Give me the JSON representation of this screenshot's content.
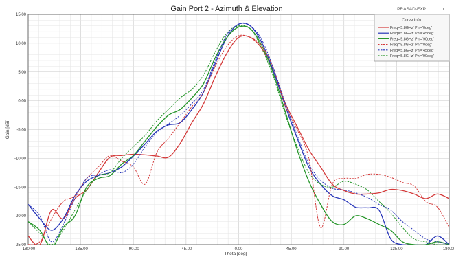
{
  "header": {
    "title": "Gain Port 2 - Azimuth & Elevation",
    "brand": "PRASAD-EXP",
    "close_glyph": "x"
  },
  "chart_data": {
    "type": "line",
    "title": "Gain Port 2 - Azimuth & Elevation",
    "xlabel": "Theta [deg]",
    "ylabel": "Gain [dBi]",
    "xlim": [
      -180,
      180
    ],
    "ylim": [
      -25,
      15
    ],
    "xticks": [
      -180,
      -135,
      -90,
      -45,
      0,
      45,
      90,
      135,
      180
    ],
    "xtick_labels": [
      "-180.00",
      "-135.00",
      "-90.00",
      "-45.00",
      "0.00",
      "45.00",
      "90.00",
      "135.00",
      "180.00"
    ],
    "yticks": [
      15,
      10,
      5,
      0,
      -5,
      -10,
      -15,
      -20,
      -25
    ],
    "ytick_labels": [
      "15.00",
      "10.00",
      "5.00",
      "0.00",
      "-5.00",
      "-10.00",
      "-15.00",
      "-20.00",
      "-25.00"
    ],
    "grid": true,
    "legend_position": "top-right",
    "legend_title": "Curve Info",
    "series": [
      {
        "name": "Freq='5.8GHz' Phi='0deg'",
        "color": "#d43a3a",
        "dashed": false,
        "x": [
          -180,
          -170,
          -160,
          -150,
          -140,
          -130,
          -120,
          -110,
          -100,
          -90,
          -80,
          -70,
          -60,
          -50,
          -40,
          -30,
          -20,
          -10,
          0,
          10,
          20,
          30,
          40,
          50,
          60,
          70,
          80,
          90,
          100,
          110,
          120,
          130,
          140,
          150,
          160,
          170,
          180
        ],
        "y": [
          -23.5,
          -25,
          -19,
          -20.5,
          -17,
          -15.5,
          -12.5,
          -9.8,
          -9.5,
          -9.3,
          -9.4,
          -9.6,
          -9.8,
          -7.4,
          -3.8,
          -0.5,
          4.2,
          8.3,
          11.0,
          11.0,
          9.0,
          5.0,
          -0.5,
          -4.5,
          -8.5,
          -11.5,
          -14.5,
          -15.6,
          -16.2,
          -16.2,
          -16.0,
          -15.4,
          -15.6,
          -16.2,
          -17.0,
          -16.2,
          -17.0
        ]
      },
      {
        "name": "Freq='5.8GHz' Phi='45deg'",
        "color": "#2634b8",
        "dashed": false,
        "x": [
          -180,
          -170,
          -160,
          -150,
          -140,
          -130,
          -120,
          -110,
          -100,
          -90,
          -80,
          -70,
          -60,
          -50,
          -40,
          -30,
          -20,
          -10,
          0,
          10,
          20,
          30,
          40,
          50,
          60,
          70,
          80,
          90,
          100,
          110,
          120,
          130,
          140,
          150,
          160,
          170,
          180
        ],
        "y": [
          -18,
          -20.5,
          -22.5,
          -20.5,
          -16.5,
          -14.0,
          -13.0,
          -12.5,
          -11.5,
          -9.6,
          -7.5,
          -5.3,
          -4.2,
          -3.8,
          -1.5,
          1.5,
          6.5,
          11.0,
          13.3,
          13.0,
          10.0,
          5.0,
          -1.0,
          -6.5,
          -11.5,
          -14.5,
          -16.5,
          -17.2,
          -18.5,
          -18.6,
          -19.0,
          -24.0,
          -25.0,
          -25.0,
          -25.0,
          -23.5,
          -25.0
        ]
      },
      {
        "name": "Freq='5.8GHz' Phi='90deg'",
        "color": "#27962b",
        "dashed": false,
        "x": [
          -180,
          -170,
          -160,
          -150,
          -140,
          -130,
          -120,
          -110,
          -100,
          -90,
          -80,
          -70,
          -60,
          -50,
          -40,
          -30,
          -20,
          -10,
          0,
          10,
          20,
          30,
          40,
          50,
          60,
          70,
          80,
          90,
          100,
          110,
          120,
          130,
          140,
          150,
          160,
          170,
          180
        ],
        "y": [
          -21,
          -22.5,
          -25.5,
          -22.0,
          -20.0,
          -15.0,
          -13.5,
          -13.0,
          -11.0,
          -9.5,
          -7.0,
          -4.5,
          -2.5,
          -1.5,
          0.5,
          3.0,
          7.5,
          11.0,
          12.8,
          12.5,
          9.5,
          4.5,
          -2.0,
          -8.5,
          -14.0,
          -18.0,
          -21.0,
          -21.5,
          -20.0,
          -20.5,
          -21.5,
          -22.5,
          -24.5,
          -25.0,
          -25.0,
          -24.5,
          -25.0
        ]
      },
      {
        "name": "Freq='5.8GHz' Phi='0deg'",
        "color": "#d43a3a",
        "dashed": true,
        "x": [
          -180,
          -170,
          -160,
          -150,
          -140,
          -130,
          -120,
          -110,
          -100,
          -90,
          -80,
          -70,
          -60,
          -50,
          -40,
          -30,
          -20,
          -10,
          0,
          10,
          20,
          30,
          40,
          50,
          60,
          70,
          80,
          90,
          100,
          110,
          120,
          130,
          140,
          150,
          160,
          170,
          180
        ],
        "y": [
          -25,
          -24.5,
          -20.5,
          -17.5,
          -16.5,
          -13.5,
          -11.5,
          -9.5,
          -10.5,
          -11.5,
          -14.5,
          -9.0,
          -6.5,
          -3.8,
          -1.0,
          1.5,
          6.0,
          9.5,
          11.3,
          11.0,
          9.5,
          5.5,
          -1.0,
          -5.0,
          -10.0,
          -22.0,
          -14.5,
          -13.5,
          -13.5,
          -12.8,
          -12.8,
          -13.3,
          -14.2,
          -14.8,
          -17.5,
          -18.5,
          -22.0
        ]
      },
      {
        "name": "Freq='5.8GHz' Phi='45deg'",
        "color": "#2634b8",
        "dashed": true,
        "x": [
          -180,
          -170,
          -160,
          -150,
          -140,
          -130,
          -120,
          -110,
          -100,
          -90,
          -80,
          -70,
          -60,
          -50,
          -40,
          -30,
          -20,
          -10,
          0,
          10,
          20,
          30,
          40,
          50,
          60,
          70,
          80,
          90,
          100,
          110,
          120,
          130,
          140,
          150,
          160,
          170,
          180
        ],
        "y": [
          -18,
          -20.0,
          -24.5,
          -21.5,
          -17.0,
          -13.5,
          -12.8,
          -12.0,
          -12.5,
          -11.0,
          -8.0,
          -5.5,
          -4.0,
          -2.5,
          -0.5,
          2.0,
          7.0,
          11.5,
          13.3,
          13.0,
          10.5,
          5.5,
          -0.5,
          -6.0,
          -11.0,
          -13.8,
          -15.2,
          -15.5,
          -16.0,
          -16.8,
          -18.0,
          -19.0,
          -21.0,
          -22.5,
          -24.0,
          -24.5,
          -25.0
        ]
      },
      {
        "name": "Freq='5.8GHz' Phi='90deg'",
        "color": "#27962b",
        "dashed": true,
        "x": [
          -180,
          -170,
          -160,
          -150,
          -140,
          -130,
          -120,
          -110,
          -100,
          -90,
          -80,
          -70,
          -60,
          -50,
          -40,
          -30,
          -20,
          -10,
          0,
          10,
          20,
          30,
          40,
          50,
          60,
          70,
          80,
          90,
          100,
          110,
          120,
          130,
          140,
          150,
          160,
          170,
          180
        ],
        "y": [
          -21,
          -23.0,
          -25.0,
          -22.5,
          -19.0,
          -15.5,
          -13.0,
          -12.5,
          -10.0,
          -8.0,
          -6.0,
          -3.5,
          -1.5,
          0.5,
          2.0,
          4.5,
          8.5,
          11.8,
          13.0,
          12.5,
          9.0,
          4.0,
          -2.5,
          -8.0,
          -12.5,
          -14.5,
          -15.0,
          -14.0,
          -14.5,
          -15.5,
          -17.5,
          -19.5,
          -22.0,
          -24.0,
          -24.5,
          -25.0,
          -25.0
        ]
      }
    ]
  }
}
